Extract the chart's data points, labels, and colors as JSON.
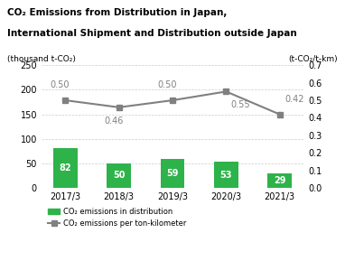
{
  "title_line1": "CO₂ Emissions from Distribution in Japan,",
  "title_line2": "International Shipment and Distribution outside Japan",
  "ylabel_left": "(thousand t-CO₂)",
  "ylabel_right": "(t-CO₂/t-km)",
  "categories": [
    "2017/3",
    "2018/3",
    "2019/3",
    "2020/3",
    "2021/3"
  ],
  "bar_values": [
    82,
    50,
    59,
    53,
    29
  ],
  "line_values": [
    0.5,
    0.46,
    0.5,
    0.55,
    0.42
  ],
  "bar_color": "#2db34a",
  "line_color": "#808080",
  "ylim_left": [
    0,
    250
  ],
  "ylim_right": [
    0.0,
    0.7
  ],
  "yticks_left": [
    0,
    50,
    100,
    150,
    200,
    250
  ],
  "yticks_right": [
    0.0,
    0.1,
    0.2,
    0.3,
    0.4,
    0.5,
    0.6,
    0.7
  ],
  "legend_bar_label": "CO₂ emissions in distribution",
  "legend_line_label": "CO₂ emissions per ton-kilometer",
  "background_color": "#ffffff",
  "grid_color": "#cccccc"
}
